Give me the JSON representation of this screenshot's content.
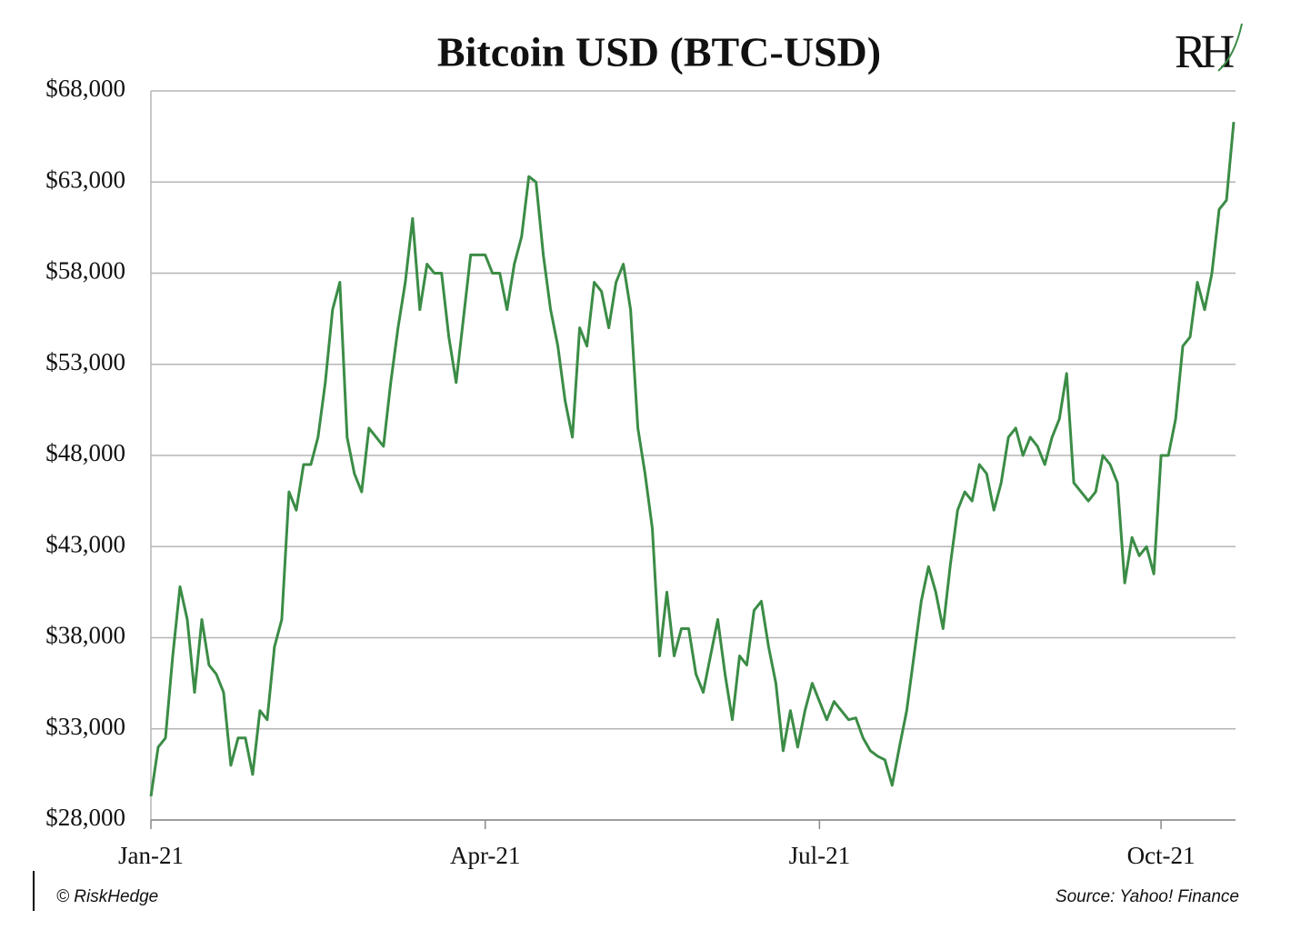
{
  "chart_data": {
    "type": "line",
    "title": "Bitcoin USD (BTC-USD)",
    "logo": "RH",
    "credit": "© RiskHedge",
    "source": "Source: Yahoo! Finance",
    "color": "#3b8c46",
    "grid": true,
    "ylim": [
      28000,
      68000
    ],
    "yticks": [
      {
        "value": 28000,
        "label": "$28,000"
      },
      {
        "value": 33000,
        "label": "$33,000"
      },
      {
        "value": 38000,
        "label": "$38,000"
      },
      {
        "value": 43000,
        "label": "$43,000"
      },
      {
        "value": 48000,
        "label": "$48,000"
      },
      {
        "value": 53000,
        "label": "$53,000"
      },
      {
        "value": 58000,
        "label": "$58,000"
      },
      {
        "value": 63000,
        "label": "$63,000"
      },
      {
        "value": 68000,
        "label": "$68,000"
      }
    ],
    "categories": [
      "Jan-21",
      null,
      null,
      null,
      null,
      null,
      null,
      null,
      null,
      null,
      null,
      null,
      null,
      null,
      null,
      null,
      null,
      null,
      null,
      null,
      null,
      null,
      null,
      null,
      null,
      null,
      null,
      null,
      null,
      null,
      null,
      null,
      null,
      null,
      null,
      null,
      null,
      null,
      null,
      null,
      null,
      null,
      null,
      null,
      null,
      null,
      "Apr-21",
      null,
      null,
      null,
      null,
      null,
      null,
      null,
      null,
      null,
      null,
      null,
      null,
      null,
      null,
      null,
      null,
      null,
      null,
      null,
      null,
      null,
      null,
      null,
      null,
      null,
      null,
      null,
      null,
      null,
      null,
      null,
      null,
      null,
      null,
      null,
      null,
      null,
      null,
      null,
      null,
      null,
      null,
      null,
      null,
      null,
      "Jul-21",
      null,
      null,
      null,
      null,
      null,
      null,
      null,
      null,
      null,
      null,
      null,
      null,
      null,
      null,
      null,
      null,
      null,
      null,
      null,
      null,
      null,
      null,
      null,
      null,
      null,
      null,
      null,
      null,
      null,
      null,
      null,
      null,
      null,
      null,
      null,
      null,
      null,
      null,
      null,
      null,
      null,
      null,
      null,
      null,
      null,
      null,
      "Oct-21",
      null,
      null,
      null,
      null,
      null,
      null,
      null,
      null,
      null,
      null
    ],
    "values": [
      29300,
      32000,
      32500,
      37000,
      40800,
      39000,
      35000,
      39000,
      36500,
      36000,
      35000,
      31000,
      32500,
      32500,
      30500,
      34000,
      33500,
      37500,
      39000,
      46000,
      45000,
      47500,
      47500,
      49000,
      52000,
      56000,
      57500,
      49000,
      47000,
      46000,
      49500,
      49000,
      48500,
      52000,
      55000,
      57500,
      61000,
      56000,
      58500,
      58000,
      58000,
      54500,
      52000,
      55500,
      59000,
      59000,
      59000,
      58000,
      58000,
      56000,
      58500,
      60000,
      63300,
      63000,
      59000,
      56000,
      54000,
      51000,
      49000,
      55000,
      54000,
      57500,
      57000,
      55000,
      57500,
      58500,
      56000,
      49500,
      47000,
      44000,
      37000,
      40500,
      37000,
      38500,
      38500,
      36000,
      35000,
      37000,
      39000,
      36000,
      33500,
      37000,
      36500,
      39500,
      40000,
      37500,
      35500,
      31800,
      34000,
      32000,
      34000,
      35500,
      34500,
      33500,
      34500,
      34000,
      33500,
      33600,
      32500,
      31800,
      31500,
      31300,
      29900,
      32000,
      34000,
      37000,
      40000,
      41900,
      40500,
      38500,
      42000,
      45000,
      46000,
      45500,
      47500,
      47000,
      45000,
      46500,
      49000,
      49500,
      48000,
      49000,
      48500,
      47500,
      49000,
      50000,
      52500,
      46500,
      46000,
      45500,
      46000,
      48000,
      47500,
      46500,
      41000,
      43500,
      42500,
      43000,
      41500,
      48000,
      48000,
      50000,
      54000,
      54500,
      57500,
      56000,
      58000,
      61500,
      62000,
      66300
    ]
  }
}
